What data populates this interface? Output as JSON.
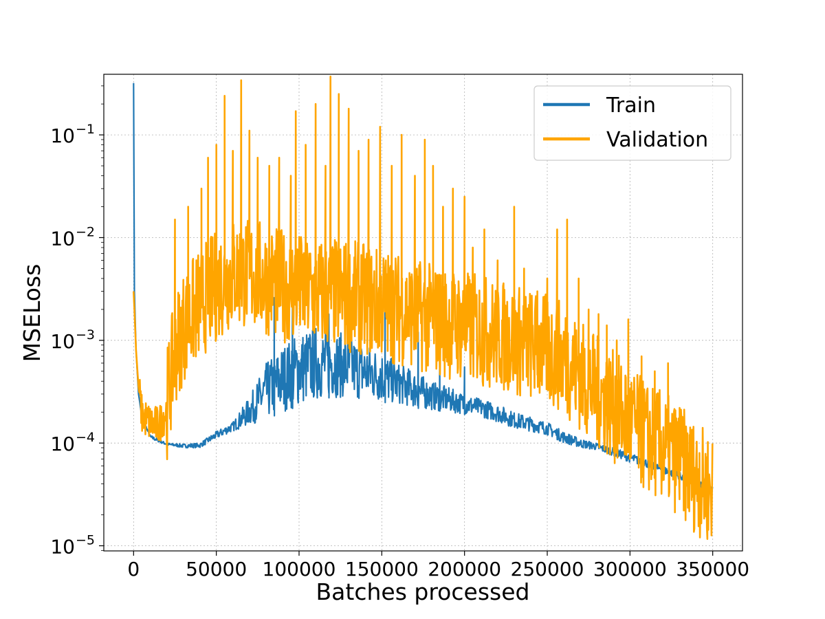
{
  "chart_data": {
    "type": "line",
    "title": "",
    "xlabel": "Batches processed",
    "ylabel": "MSELoss",
    "xlim": [
      -18000,
      368000
    ],
    "ylim_log10": [
      -5.05,
      -0.41
    ],
    "yscale": "log",
    "grid": true,
    "legend_position": "top-right",
    "x_ticks": [
      0,
      50000,
      100000,
      150000,
      200000,
      250000,
      300000,
      350000
    ],
    "x_tick_labels": [
      "0",
      "50000",
      "100000",
      "150000",
      "200000",
      "250000",
      "300000",
      "350000"
    ],
    "y_ticks": [
      {
        "exp": -1,
        "base": "10",
        "power": "−1"
      },
      {
        "exp": -2,
        "base": "10",
        "power": "−2"
      },
      {
        "exp": -3,
        "base": "10",
        "power": "−3"
      },
      {
        "exp": -4,
        "base": "10",
        "power": "−4"
      },
      {
        "exp": -5,
        "base": "10",
        "power": "−5"
      }
    ],
    "series": [
      {
        "name": "Train",
        "color": "#1f77b4",
        "x": [
          0,
          500,
          1500,
          3000,
          5000,
          10000,
          20000,
          30000,
          40000,
          50000,
          60000,
          70000,
          80000,
          90000,
          100000,
          110000,
          120000,
          130000,
          140000,
          150000,
          160000,
          170000,
          180000,
          190000,
          200000,
          210000,
          220000,
          230000,
          240000,
          250000,
          260000,
          270000,
          280000,
          290000,
          300000,
          310000,
          320000,
          330000,
          340000,
          350000
        ],
        "values": [
          0.32,
          0.003,
          0.0008,
          0.0003,
          0.00018,
          0.00011,
          9.5e-05,
          9e-05,
          9e-05,
          0.00011,
          0.00013,
          0.00015,
          0.00017,
          0.0002,
          0.00023,
          0.00026,
          0.00028,
          0.00027,
          0.00026,
          0.00025,
          0.00024,
          0.00022,
          0.00021,
          0.0002,
          0.00019,
          0.00018,
          0.00016,
          0.00014,
          0.00013,
          0.00012,
          0.0001,
          9e-05,
          8.5e-05,
          7.5e-05,
          6.5e-05,
          5.8e-05,
          5e-05,
          4.4e-05,
          3.8e-05,
          3.2e-05
        ],
        "upper": [
          0.32,
          0.003,
          0.0008,
          0.0003,
          0.00018,
          0.00012,
          0.0001,
          9.8e-05,
          0.0001,
          0.00013,
          0.00016,
          0.00028,
          0.0006,
          0.0009,
          0.0012,
          0.0014,
          0.0013,
          0.0011,
          0.00095,
          0.0008,
          0.0006,
          0.0005,
          0.0004,
          0.00035,
          0.0003,
          0.00027,
          0.00024,
          0.0002,
          0.00018,
          0.00016,
          0.00013,
          0.00011,
          0.0001,
          9e-05,
          8e-05,
          7e-05,
          6e-05,
          5.2e-05,
          4.5e-05,
          3.8e-05
        ],
        "spikes": [
          [
            85000,
            0.0026
          ],
          [
            96000,
            0.0022
          ],
          [
            118000,
            0.0018
          ],
          [
            152000,
            0.003
          ],
          [
            172000,
            0.0012
          ],
          [
            185000,
            0.00085
          ],
          [
            200000,
            0.00055
          ]
        ]
      },
      {
        "name": "Validation",
        "color": "#ffa500",
        "x": [
          0,
          500,
          1500,
          3000,
          5000,
          10000,
          15000,
          20000,
          25000,
          30000,
          40000,
          50000,
          60000,
          70000,
          80000,
          90000,
          100000,
          110000,
          120000,
          130000,
          140000,
          150000,
          160000,
          170000,
          180000,
          190000,
          200000,
          210000,
          220000,
          230000,
          240000,
          250000,
          260000,
          270000,
          280000,
          290000,
          300000,
          310000,
          320000,
          330000,
          340000,
          350000
        ],
        "values": [
          0.003,
          0.002,
          0.0008,
          0.00035,
          0.00018,
          0.00015,
          0.00014,
          0.0002,
          0.0007,
          0.0012,
          0.002,
          0.003,
          0.004,
          0.004,
          0.0035,
          0.003,
          0.0028,
          0.0025,
          0.0025,
          0.0024,
          0.0022,
          0.002,
          0.0018,
          0.0016,
          0.0014,
          0.0013,
          0.0012,
          0.0011,
          0.001,
          0.0009,
          0.0008,
          0.0007,
          0.0006,
          0.0004,
          0.00028,
          0.0002,
          0.00014,
          0.0001,
          8e-05,
          6e-05,
          4e-05,
          3e-05
        ],
        "spikes": [
          [
            25000,
            0.015
          ],
          [
            33000,
            0.02
          ],
          [
            41000,
            0.03
          ],
          [
            45000,
            0.06
          ],
          [
            50000,
            0.08
          ],
          [
            55000,
            0.24
          ],
          [
            60000,
            0.07
          ],
          [
            65000,
            0.34
          ],
          [
            70000,
            0.11
          ],
          [
            75000,
            0.06
          ],
          [
            82000,
            0.05
          ],
          [
            88000,
            0.06
          ],
          [
            95000,
            0.04
          ],
          [
            98000,
            0.17
          ],
          [
            104000,
            0.08
          ],
          [
            110000,
            0.2
          ],
          [
            116000,
            0.05
          ],
          [
            119000,
            0.37
          ],
          [
            124000,
            0.25
          ],
          [
            130000,
            0.18
          ],
          [
            136000,
            0.07
          ],
          [
            142000,
            0.09
          ],
          [
            149000,
            0.12
          ],
          [
            156000,
            0.05
          ],
          [
            162000,
            0.1
          ],
          [
            170000,
            0.04
          ],
          [
            176000,
            0.09
          ],
          [
            181000,
            0.05
          ],
          [
            187000,
            0.02
          ],
          [
            193000,
            0.03
          ],
          [
            200000,
            0.025
          ],
          [
            205000,
            0.008
          ],
          [
            212000,
            0.012
          ],
          [
            220000,
            0.006
          ],
          [
            230000,
            0.02
          ],
          [
            236000,
            0.005
          ],
          [
            244000,
            0.003
          ],
          [
            250000,
            0.004
          ],
          [
            256000,
            0.012
          ],
          [
            262000,
            0.015
          ],
          [
            269000,
            0.004
          ],
          [
            275000,
            0.002
          ],
          [
            281000,
            0.0018
          ],
          [
            286000,
            0.0014
          ],
          [
            292000,
            0.001
          ],
          [
            299000,
            0.0016
          ],
          [
            307000,
            0.0007
          ],
          [
            315000,
            0.0005
          ],
          [
            323000,
            0.0006
          ],
          [
            330000,
            0.00022
          ],
          [
            336000,
            0.00012
          ],
          [
            342000,
            8e-05
          ],
          [
            347000,
            7e-05
          ]
        ]
      }
    ]
  }
}
